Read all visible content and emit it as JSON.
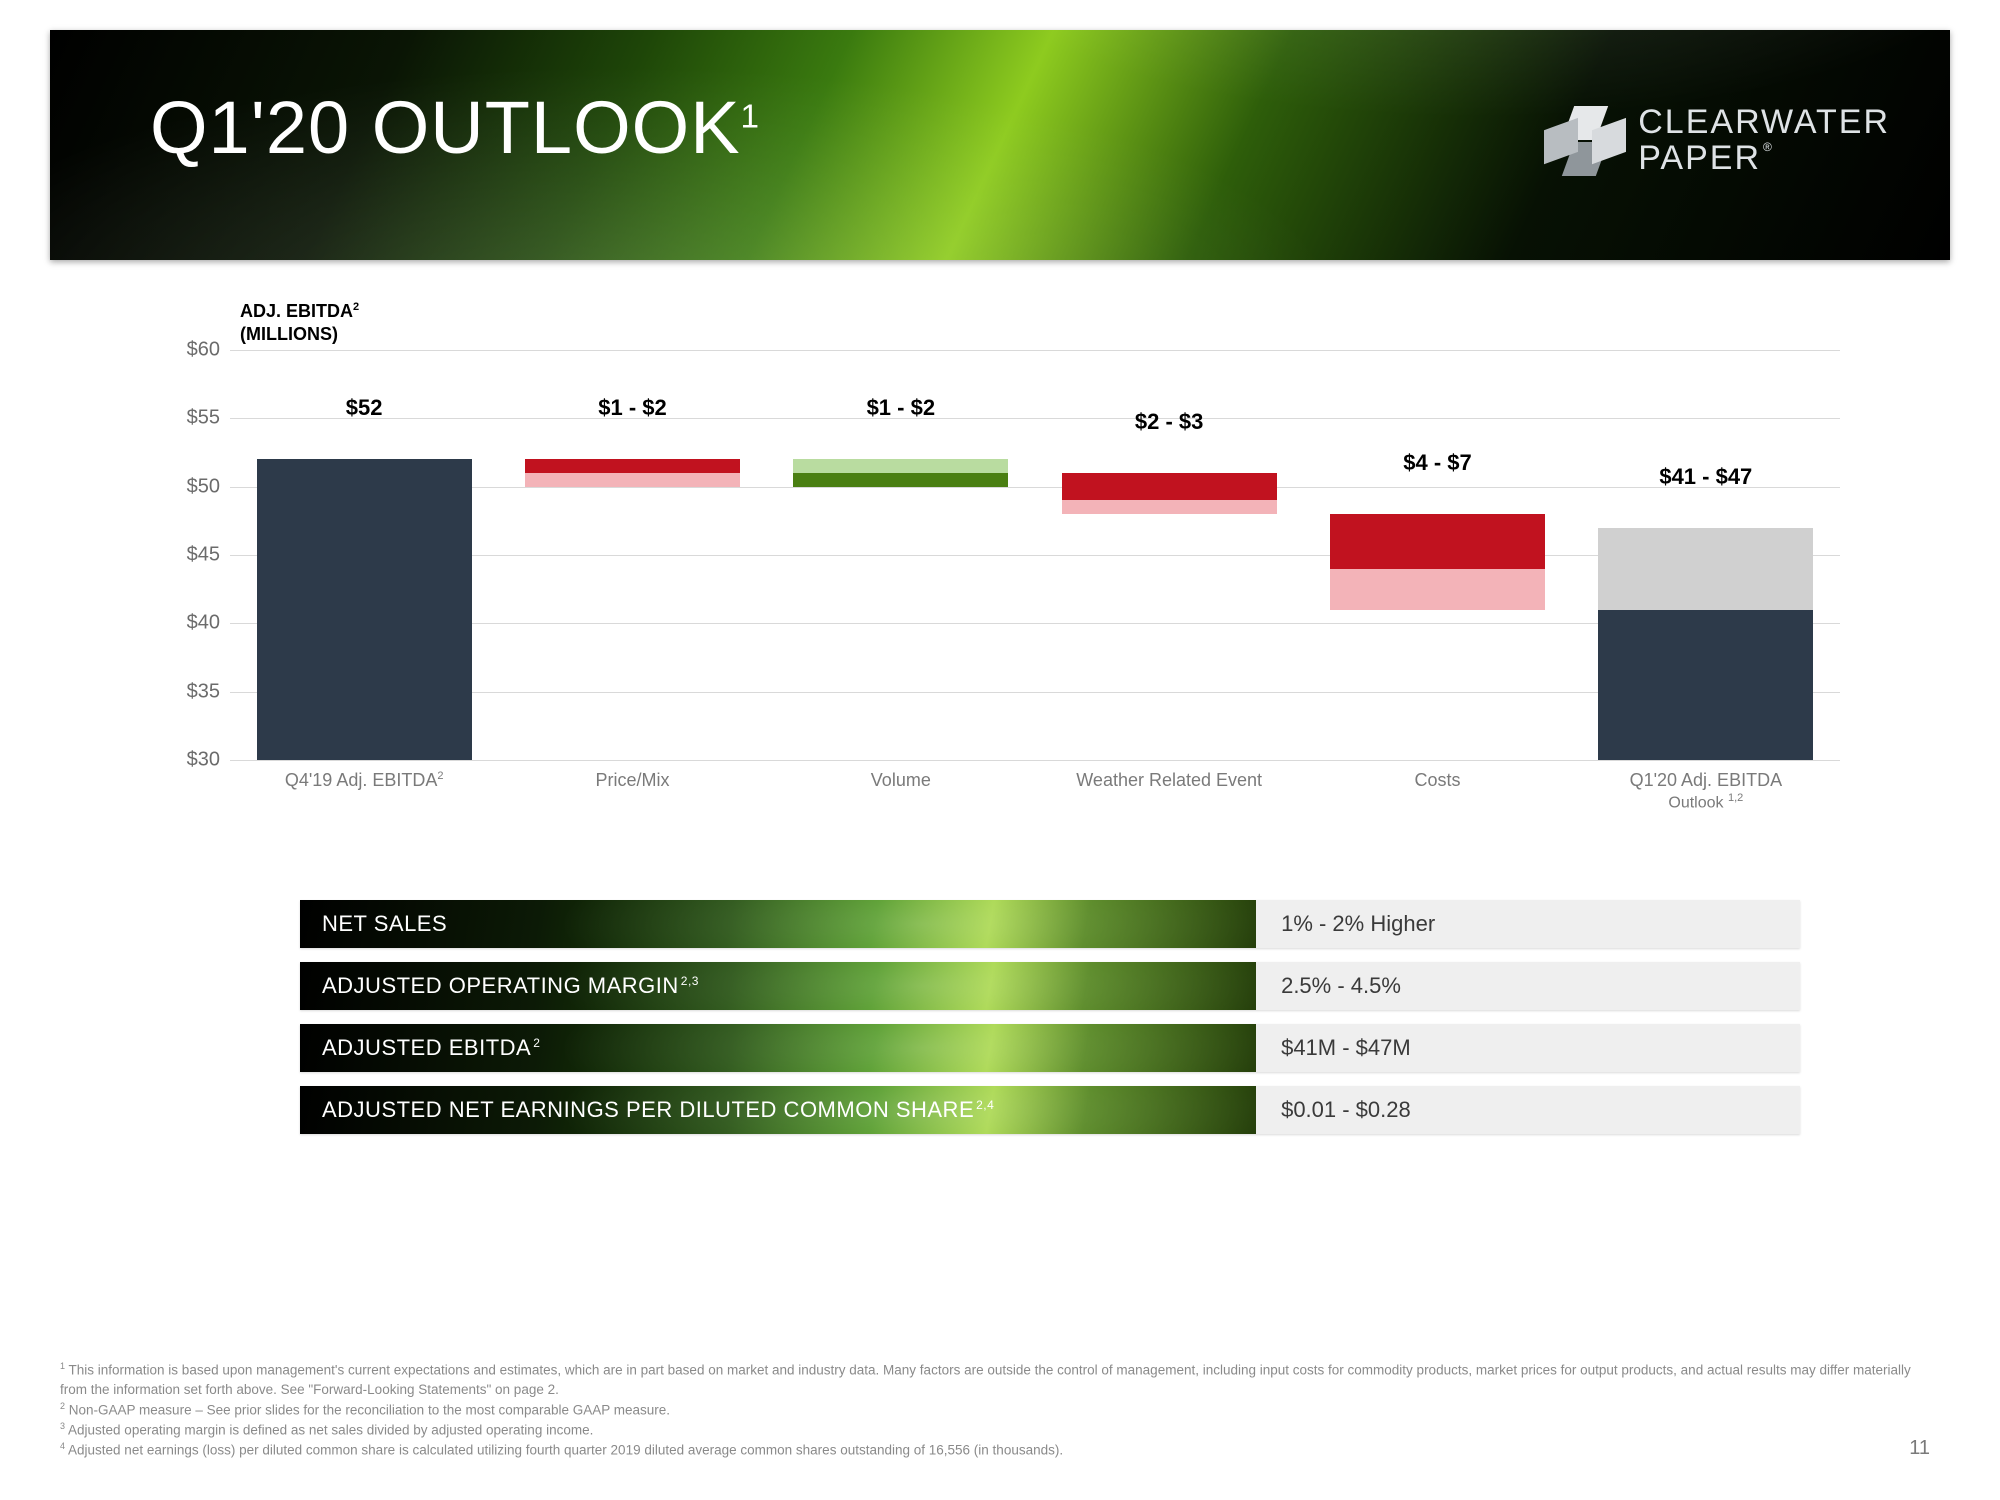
{
  "banner": {
    "title": "Q1'20 OUTLOOK",
    "title_sup": "1",
    "title_fontsize": 74,
    "logo_line1": "CLEARWATER",
    "logo_line2": "PAPER",
    "logo_reg": "®"
  },
  "chart": {
    "type": "waterfall",
    "title_line1": "ADJ. EBITDA",
    "title_sup": "2",
    "title_line2": "(MILLIONS)",
    "y_axis": {
      "min": 30,
      "max": 60,
      "step": 5,
      "prefix": "$"
    },
    "grid_color": "#d9d9d9",
    "colors": {
      "base": "#2d3a4a",
      "neg_dark": "#c1121f",
      "neg_light": "#f3b3b8",
      "pos_dark": "#4a7f12",
      "pos_light": "#b9dca0",
      "final_top": "#d0d0d0",
      "final_bot": "#2d3a4a"
    },
    "columns": [
      {
        "x_label": "Q4'19 Adj. EBITDA",
        "x_sup": "2",
        "bar_label": "$52",
        "segments": [
          {
            "from": 30,
            "to": 52,
            "color": "base"
          }
        ]
      },
      {
        "x_label": "Price/Mix",
        "bar_label": "$1 - $2",
        "segments": [
          {
            "from": 51,
            "to": 52,
            "color": "neg_dark"
          },
          {
            "from": 50,
            "to": 51,
            "color": "neg_light"
          }
        ]
      },
      {
        "x_label": "Volume",
        "bar_label": "$1 - $2",
        "segments": [
          {
            "from": 51,
            "to": 52,
            "color": "pos_light"
          },
          {
            "from": 50,
            "to": 51,
            "color": "pos_dark"
          }
        ]
      },
      {
        "x_label": "Weather Related Event",
        "bar_label": "$2 - $3",
        "segments": [
          {
            "from": 49,
            "to": 51,
            "color": "neg_dark"
          },
          {
            "from": 48,
            "to": 49,
            "color": "neg_light"
          }
        ]
      },
      {
        "x_label": "Costs",
        "bar_label": "$4 - $7",
        "segments": [
          {
            "from": 44,
            "to": 48,
            "color": "neg_dark"
          },
          {
            "from": 41,
            "to": 44,
            "color": "neg_light"
          }
        ]
      },
      {
        "x_label": "Q1'20 Adj. EBITDA",
        "x_line2": "Outlook",
        "x_sup": "1,2",
        "bar_label": "$41 - $47",
        "segments": [
          {
            "from": 41,
            "to": 47,
            "color": "final_top"
          },
          {
            "from": 30,
            "to": 41,
            "color": "final_bot"
          }
        ]
      }
    ]
  },
  "metrics": [
    {
      "label": "NET SALES",
      "sup": "",
      "value": "1% - 2% Higher"
    },
    {
      "label": "ADJUSTED OPERATING MARGIN",
      "sup": "2,3",
      "value": "2.5% - 4.5%"
    },
    {
      "label": "ADJUSTED EBITDA",
      "sup": "2",
      "value": "$41M - $47M"
    },
    {
      "label": "ADJUSTED NET EARNINGS PER DILUTED COMMON SHARE",
      "sup": "2,4",
      "value": "$0.01 - $0.28"
    }
  ],
  "footnotes": [
    "This information is based upon management's current expectations and estimates, which are in part based on market and industry data.  Many factors are outside the control of management, including input costs for commodity products, market prices for output products, and actual results may differ materially from the information set forth above.  See \"Forward-Looking Statements\" on page 2.",
    "Non-GAAP measure – See prior slides for the reconciliation to the most comparable GAAP measure.",
    "Adjusted operating margin is defined as net sales divided by adjusted operating income.",
    "Adjusted net earnings (loss) per diluted common share is calculated utilizing fourth quarter 2019 diluted average common shares outstanding of 16,556 (in thousands)."
  ],
  "page_number": "11"
}
